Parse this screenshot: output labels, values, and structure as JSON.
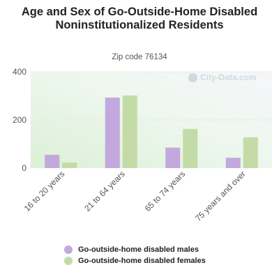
{
  "chart_data": {
    "type": "bar",
    "title": "Age and Sex of Go-Outside-Home Disabled Noninstitutionalized Residents",
    "subtitle": "Zip code 76134",
    "categories": [
      "16 to 20 years",
      "21 to 64 years",
      "65 to 74 years",
      "75 years and over"
    ],
    "series": [
      {
        "name": "Go-outside-home disabled males",
        "color": "#c2a8dc",
        "values": [
          55,
          293,
          85,
          43
        ]
      },
      {
        "name": "Go-outside-home disabled females",
        "color": "#c4dba8",
        "values": [
          23,
          302,
          163,
          128
        ]
      }
    ],
    "ylim": [
      0,
      400
    ],
    "yticks": [
      0,
      200,
      400
    ],
    "grid": true,
    "legend": "bottom",
    "watermark": "City-Data.com"
  }
}
